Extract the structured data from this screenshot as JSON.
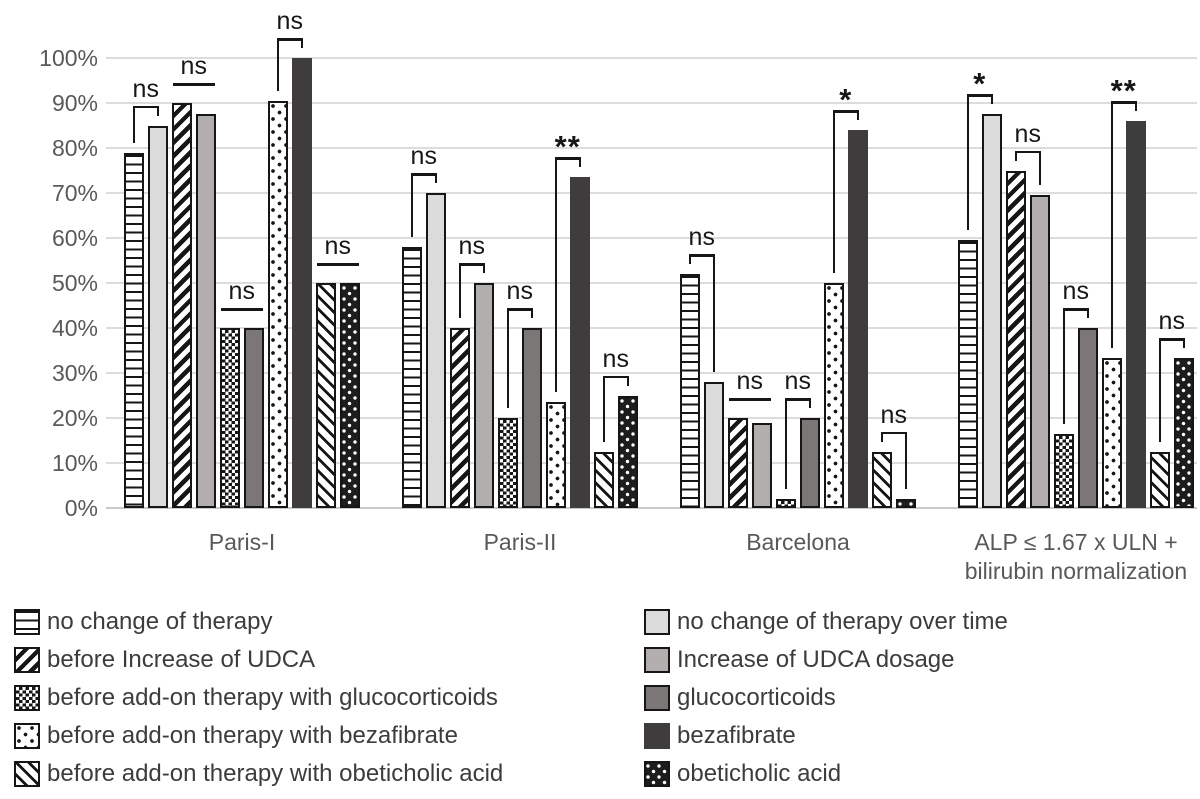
{
  "chart_data": {
    "type": "bar",
    "title": "",
    "xlabel": "",
    "ylabel": "",
    "ylim": [
      0,
      100
    ],
    "grid": "horizontal",
    "yticks": [
      "0%",
      "10%",
      "20%",
      "30%",
      "40%",
      "50%",
      "60%",
      "70%",
      "80%",
      "90%",
      "100%"
    ],
    "categories": [
      "Paris-I",
      "Paris-II",
      "Barcelona",
      "ALP ≤ 1.67 x ULN +\nbilirubin normalization"
    ],
    "series": [
      {
        "key": "no-change",
        "name": "no change of therapy",
        "pattern": "horizontal-stripes",
        "values": [
          79,
          58,
          52,
          59.5
        ]
      },
      {
        "key": "no-change-over-time",
        "name": "no change of therapy over time",
        "pattern": "solid-light-gray",
        "color": "#dbdbdb",
        "values": [
          85,
          70,
          28,
          87.5
        ]
      },
      {
        "key": "before-udca-increase",
        "name": "before Increase of UDCA",
        "pattern": "diagonal-stripes-up",
        "values": [
          90,
          40,
          20,
          75
        ]
      },
      {
        "key": "udca-increase",
        "name": "Increase of UDCA dosage",
        "pattern": "solid-gray",
        "color": "#b2aeae",
        "values": [
          87.5,
          50,
          19,
          69.5
        ]
      },
      {
        "key": "before-glucocorticoids",
        "name": "before add-on therapy with glucocorticoids",
        "pattern": "dense-dot-checker",
        "values": [
          40,
          20,
          2,
          16.5
        ]
      },
      {
        "key": "glucocorticoids",
        "name": "glucocorticoids",
        "pattern": "solid-dark-gray",
        "color": "#7c7777",
        "values": [
          40,
          40,
          20,
          40
        ]
      },
      {
        "key": "before-bezafibrate",
        "name": "before add-on therapy with bezafibrate",
        "pattern": "sparse-dots",
        "values": [
          90.5,
          23.5,
          50,
          33.3
        ]
      },
      {
        "key": "bezafibrate",
        "name": "bezafibrate",
        "pattern": "solid-charcoal",
        "color": "#3e3c3c",
        "values": [
          100,
          73.5,
          84,
          86
        ]
      },
      {
        "key": "before-obeticholic",
        "name": "before add-on therapy with obeticholic acid",
        "pattern": "diagonal-stripes-down",
        "values": [
          50,
          12.5,
          12.5,
          12.5
        ]
      },
      {
        "key": "obeticholic",
        "name": "obeticholic acid",
        "pattern": "black-with-white-dots",
        "color": "#1d1d1d",
        "values": [
          50,
          25,
          2,
          33.3
        ]
      }
    ],
    "significance": {
      "pairs": [
        [
          1,
          2
        ],
        [
          3,
          4
        ],
        [
          5,
          6
        ],
        [
          7,
          8
        ],
        [
          9,
          10
        ]
      ],
      "labels": [
        [
          "ns",
          "ns",
          "ns",
          "ns",
          "ns"
        ],
        [
          "ns",
          "ns",
          "ns",
          "**",
          "ns"
        ],
        [
          "ns",
          "ns",
          "ns",
          "*",
          "ns"
        ],
        [
          "*",
          "ns",
          "ns",
          "**",
          "ns"
        ]
      ]
    },
    "legend_position": "bottom-two-columns",
    "colors": {
      "ink": "#161616",
      "axis_text": "#595959",
      "gridline": "#dcdcdc",
      "legend_text": "#3c3c3c"
    }
  }
}
